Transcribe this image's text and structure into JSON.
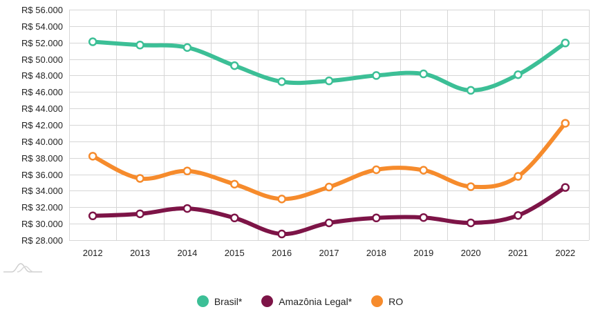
{
  "chart_data": {
    "type": "line",
    "title": "",
    "xlabel": "",
    "ylabel": "",
    "categories": [
      "2012",
      "2013",
      "2014",
      "2015",
      "2016",
      "2017",
      "2018",
      "2019",
      "2020",
      "2021",
      "2022"
    ],
    "ylim": [
      28000,
      56000
    ],
    "yticks": [
      28000,
      30000,
      32000,
      34000,
      36000,
      38000,
      40000,
      42000,
      44000,
      46000,
      48000,
      50000,
      52000,
      54000,
      56000
    ],
    "ytick_labels": [
      "R$ 28.000",
      "R$ 30.000",
      "R$ 32.000",
      "R$ 34.000",
      "R$ 36.000",
      "R$ 38.000",
      "R$ 40.000",
      "R$ 42.000",
      "R$ 44.000",
      "R$ 46.000",
      "R$ 48.000",
      "R$ 50.000",
      "R$ 52.000",
      "R$ 54.000",
      "R$ 56.000"
    ],
    "grid": true,
    "legend_position": "bottom-center",
    "smooth": true,
    "series": [
      {
        "name": "Brasil*",
        "color": "#3cbf96",
        "values": [
          52100,
          51700,
          51400,
          49200,
          47250,
          47350,
          48000,
          48200,
          46200,
          48100,
          51950
        ]
      },
      {
        "name": "Amazônia Legal*",
        "color": "#7d1447",
        "values": [
          30950,
          31200,
          31850,
          30700,
          28750,
          30100,
          30700,
          30750,
          30100,
          31000,
          34400
        ]
      },
      {
        "name": "RO",
        "color": "#f68b2c",
        "values": [
          38200,
          35500,
          36400,
          34800,
          33000,
          34450,
          36550,
          36500,
          34500,
          35750,
          42200
        ]
      }
    ]
  },
  "legend": {
    "items": [
      {
        "label": "Brasil*",
        "color": "#3cbf96"
      },
      {
        "label": "Amazônia Legal*",
        "color": "#7d1447"
      },
      {
        "label": "RO",
        "color": "#f68b2c"
      }
    ]
  },
  "logo": {
    "icon": "mountain-logo-icon"
  }
}
